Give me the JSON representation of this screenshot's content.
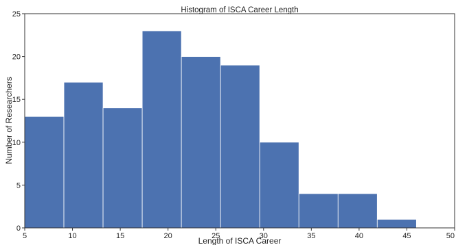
{
  "chart_data": {
    "type": "bar",
    "title": "Histogram of ISCA Career Length",
    "xlabel": "Length of ISCA Career",
    "ylabel": "Number of Researchers",
    "bin_edges": [
      5,
      9.1,
      13.2,
      17.3,
      21.4,
      25.5,
      29.6,
      33.7,
      37.8,
      41.9,
      46
    ],
    "values": [
      13,
      17,
      14,
      23,
      20,
      19,
      10,
      4,
      4,
      1
    ],
    "xlim": [
      5,
      50
    ],
    "ylim": [
      0,
      25
    ],
    "xticks": [
      5,
      10,
      15,
      20,
      25,
      30,
      35,
      40,
      45,
      50
    ],
    "yticks": [
      0,
      5,
      10,
      15,
      20,
      25
    ],
    "bar_color": "#4c72b0",
    "edge_color": "#ffffff",
    "grid": false,
    "legend": "none"
  }
}
